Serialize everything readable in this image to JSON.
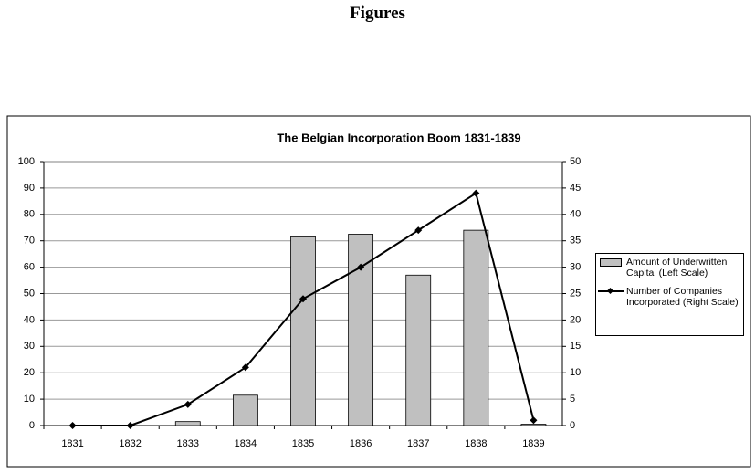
{
  "heading": "Figures",
  "chart_data": {
    "type": "bar",
    "title": "The Belgian Incorporation Boom 1831-1839",
    "categories": [
      "1831",
      "1832",
      "1833",
      "1834",
      "1835",
      "1836",
      "1837",
      "1838",
      "1839"
    ],
    "series": [
      {
        "name": "Amount of Underwritten Capital (Left Scale)",
        "type": "bar",
        "color": "#c0c0c0",
        "values": [
          0,
          0,
          1.5,
          11.5,
          71.5,
          72.5,
          57,
          74,
          0.5
        ]
      },
      {
        "name": "Number of Companies Incorporated (Right Scale)",
        "type": "line",
        "axis": "y2",
        "color": "#000000",
        "values": [
          0,
          0,
          4,
          11,
          24,
          30,
          37,
          44,
          1
        ]
      }
    ],
    "ylim": [
      0,
      100
    ],
    "yticks": [
      0,
      10,
      20,
      30,
      40,
      50,
      60,
      70,
      80,
      90,
      100
    ],
    "y2lim": [
      0,
      50
    ],
    "y2ticks": [
      0,
      5,
      10,
      15,
      20,
      25,
      30,
      35,
      40,
      45,
      50
    ],
    "grid": true,
    "legend": "right"
  }
}
